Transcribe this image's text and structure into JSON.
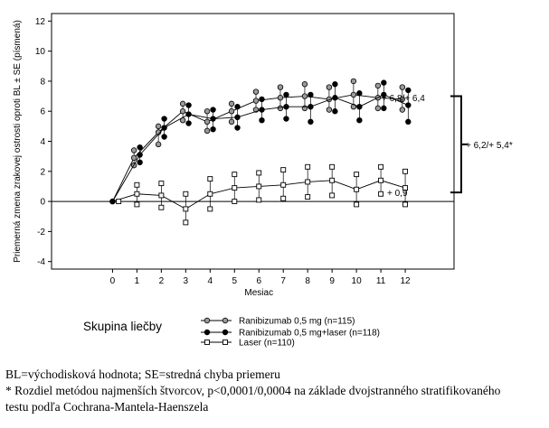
{
  "chart_data": {
    "type": "line",
    "xlabel": "Mesiac",
    "ylabel": "Priemerná zmena zrakovej ostrosti oproti BL ± SE (písmená)",
    "xlim": [
      -2.5,
      14
    ],
    "ylim": [
      -4.5,
      12.5
    ],
    "x_ticks": [
      0,
      1,
      2,
      3,
      4,
      5,
      6,
      7,
      8,
      9,
      10,
      11,
      12
    ],
    "y_ticks": [
      -4,
      -2,
      0,
      2,
      4,
      6,
      8,
      10,
      12
    ],
    "grid": false,
    "reference_line_y": 0,
    "legend": {
      "title": "Skupina liečby",
      "placement": "bottom"
    },
    "series": [
      {
        "name": "Ranibizumab 0,5 mg (n=115)",
        "marker": "circle-gray",
        "x": [
          0,
          1,
          2,
          3,
          4,
          5,
          6,
          7,
          8,
          9,
          10,
          11,
          12
        ],
        "y": [
          0,
          2.9,
          4.6,
          6.0,
          5.3,
          6.0,
          6.7,
          6.9,
          7.0,
          6.8,
          7.1,
          6.9,
          6.8
        ],
        "upper": [
          0,
          3.4,
          5.0,
          6.5,
          6.0,
          6.5,
          7.3,
          7.6,
          7.8,
          7.6,
          8.0,
          7.7,
          7.6
        ],
        "lower": [
          0,
          2.4,
          3.8,
          5.4,
          4.7,
          5.3,
          6.1,
          6.2,
          6.2,
          6.1,
          6.3,
          6.2,
          6.1
        ]
      },
      {
        "name": "Ranibizumab 0,5 mg+laser (n=118)",
        "marker": "circle-black",
        "x": [
          0,
          1,
          2,
          3,
          4,
          5,
          6,
          7,
          8,
          9,
          10,
          11,
          12
        ],
        "y": [
          0,
          3.1,
          4.9,
          5.8,
          5.5,
          5.6,
          6.1,
          6.3,
          6.3,
          6.9,
          6.3,
          7.1,
          6.4
        ],
        "upper": [
          0,
          3.6,
          5.5,
          6.4,
          6.1,
          6.3,
          6.8,
          7.1,
          7.1,
          7.8,
          7.2,
          7.9,
          7.4
        ],
        "lower": [
          0,
          2.6,
          4.3,
          5.2,
          4.8,
          4.9,
          5.4,
          5.5,
          5.3,
          6.0,
          5.4,
          6.2,
          5.3
        ]
      },
      {
        "name": "Laser (n=110)",
        "marker": "square-open",
        "x": [
          0,
          1,
          2,
          3,
          4,
          5,
          6,
          7,
          8,
          9,
          10,
          11,
          12
        ],
        "y": [
          0,
          0.5,
          0.4,
          -0.5,
          0.5,
          0.9,
          1.0,
          1.1,
          1.3,
          1.4,
          0.8,
          1.4,
          0.9
        ],
        "upper": [
          0,
          1.1,
          1.2,
          0.5,
          1.5,
          1.8,
          1.9,
          2.1,
          2.3,
          2.3,
          1.8,
          2.3,
          2.0
        ],
        "lower": [
          0,
          -0.2,
          -0.4,
          -1.4,
          -0.5,
          0.0,
          0.1,
          0.2,
          0.3,
          0.4,
          -0.2,
          0.5,
          -0.2
        ]
      }
    ],
    "annotations": [
      {
        "id": "ranibizumab",
        "text": "+ 6,8/+ 6,4",
        "at_y": 6.9
      },
      {
        "id": "laser",
        "text": "+ 0,9",
        "at_y": 0.6
      },
      {
        "id": "bracket",
        "text": "+ 6,2/+ 5,4*",
        "y_range": [
          0.6,
          7.0
        ]
      }
    ]
  },
  "footnotes": [
    "BL=východisková hodnota; SE=stredná chyba priemeru",
    "* Rozdiel metódou najmenších štvorcov, p<0,0001/0,0004 na základe dvojstranného stratifikovaného",
    "testu podľa Cochrana-Mantela-Haenszela"
  ]
}
